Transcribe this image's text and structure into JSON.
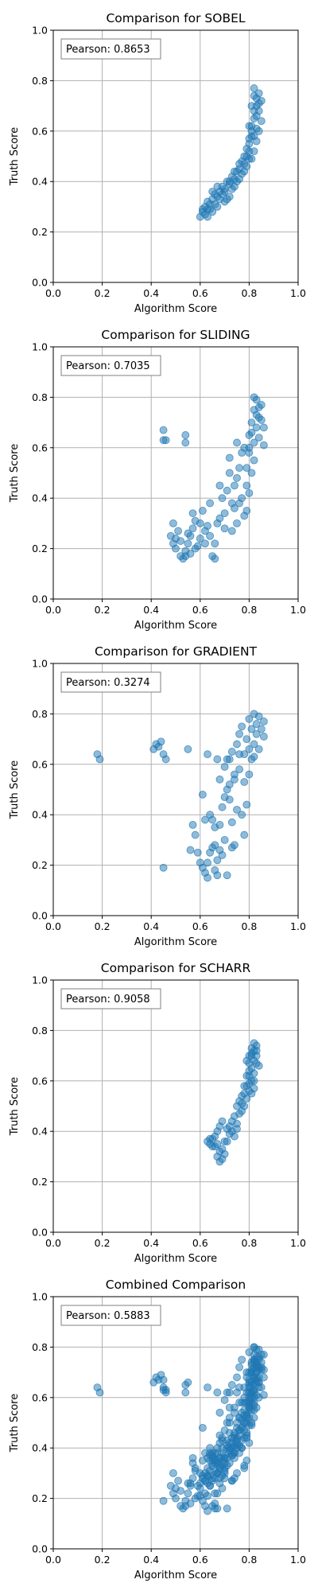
{
  "chart_data": [
    {
      "type": "scatter",
      "title": "Comparison for SOBEL",
      "xlabel": "Algorithm Score",
      "ylabel": "Truth Score",
      "xlim": [
        0,
        1
      ],
      "ylim": [
        0,
        1
      ],
      "xticks": [
        "0.0",
        "0.2",
        "0.4",
        "0.6",
        "0.8",
        "1.0"
      ],
      "yticks": [
        "0.0",
        "0.2",
        "0.4",
        "0.6",
        "0.8",
        "1.0"
      ],
      "grid": true,
      "annotation": "Pearson: 0.8653",
      "color": "#1f77b4",
      "points": [
        [
          0.6,
          0.26
        ],
        [
          0.61,
          0.28
        ],
        [
          0.62,
          0.3
        ],
        [
          0.63,
          0.29
        ],
        [
          0.64,
          0.31
        ],
        [
          0.65,
          0.33
        ],
        [
          0.66,
          0.35
        ],
        [
          0.67,
          0.34
        ],
        [
          0.68,
          0.36
        ],
        [
          0.69,
          0.38
        ],
        [
          0.7,
          0.36
        ],
        [
          0.71,
          0.4
        ],
        [
          0.72,
          0.39
        ],
        [
          0.73,
          0.42
        ],
        [
          0.74,
          0.41
        ],
        [
          0.75,
          0.44
        ],
        [
          0.76,
          0.45
        ],
        [
          0.77,
          0.48
        ],
        [
          0.78,
          0.47
        ],
        [
          0.79,
          0.5
        ],
        [
          0.8,
          0.52
        ],
        [
          0.8,
          0.55
        ],
        [
          0.81,
          0.58
        ],
        [
          0.81,
          0.62
        ],
        [
          0.82,
          0.65
        ],
        [
          0.82,
          0.68
        ],
        [
          0.83,
          0.7
        ],
        [
          0.83,
          0.73
        ],
        [
          0.84,
          0.75
        ],
        [
          0.82,
          0.77
        ],
        [
          0.84,
          0.71
        ],
        [
          0.83,
          0.66
        ],
        [
          0.81,
          0.6
        ],
        [
          0.8,
          0.57
        ],
        [
          0.79,
          0.53
        ],
        [
          0.78,
          0.5
        ],
        [
          0.76,
          0.47
        ],
        [
          0.74,
          0.44
        ],
        [
          0.72,
          0.4
        ],
        [
          0.7,
          0.37
        ],
        [
          0.68,
          0.33
        ],
        [
          0.66,
          0.31
        ],
        [
          0.64,
          0.29
        ],
        [
          0.62,
          0.27
        ],
        [
          0.61,
          0.29
        ],
        [
          0.63,
          0.32
        ],
        [
          0.65,
          0.36
        ],
        [
          0.67,
          0.38
        ],
        [
          0.69,
          0.35
        ],
        [
          0.71,
          0.33
        ],
        [
          0.73,
          0.37
        ],
        [
          0.75,
          0.4
        ],
        [
          0.77,
          0.43
        ],
        [
          0.79,
          0.46
        ],
        [
          0.81,
          0.49
        ],
        [
          0.82,
          0.52
        ],
        [
          0.83,
          0.56
        ],
        [
          0.84,
          0.6
        ],
        [
          0.85,
          0.64
        ],
        [
          0.84,
          0.68
        ],
        [
          0.85,
          0.72
        ],
        [
          0.82,
          0.74
        ],
        [
          0.81,
          0.7
        ],
        [
          0.8,
          0.62
        ],
        [
          0.82,
          0.58
        ],
        [
          0.83,
          0.61
        ],
        [
          0.8,
          0.49
        ],
        [
          0.78,
          0.44
        ],
        [
          0.76,
          0.41
        ],
        [
          0.74,
          0.38
        ],
        [
          0.72,
          0.34
        ],
        [
          0.7,
          0.32
        ],
        [
          0.67,
          0.3
        ],
        [
          0.65,
          0.28
        ],
        [
          0.63,
          0.26
        ]
      ]
    },
    {
      "type": "scatter",
      "title": "Comparison for SLIDING",
      "xlabel": "Algorithm Score",
      "ylabel": "Truth Score",
      "xlim": [
        0,
        1
      ],
      "ylim": [
        0,
        1
      ],
      "xticks": [
        "0.0",
        "0.2",
        "0.4",
        "0.6",
        "0.8",
        "1.0"
      ],
      "yticks": [
        "0.0",
        "0.2",
        "0.4",
        "0.6",
        "0.8",
        "1.0"
      ],
      "grid": true,
      "annotation": "Pearson: 0.7035",
      "color": "#1f77b4",
      "points": [
        [
          0.45,
          0.67
        ],
        [
          0.45,
          0.63
        ],
        [
          0.46,
          0.63
        ],
        [
          0.54,
          0.65
        ],
        [
          0.54,
          0.62
        ],
        [
          0.48,
          0.25
        ],
        [
          0.49,
          0.22
        ],
        [
          0.5,
          0.2
        ],
        [
          0.51,
          0.27
        ],
        [
          0.52,
          0.17
        ],
        [
          0.53,
          0.16
        ],
        [
          0.54,
          0.19
        ],
        [
          0.55,
          0.22
        ],
        [
          0.56,
          0.25
        ],
        [
          0.57,
          0.28
        ],
        [
          0.58,
          0.31
        ],
        [
          0.59,
          0.21
        ],
        [
          0.6,
          0.3
        ],
        [
          0.61,
          0.35
        ],
        [
          0.62,
          0.27
        ],
        [
          0.63,
          0.29
        ],
        [
          0.64,
          0.38
        ],
        [
          0.65,
          0.17
        ],
        [
          0.66,
          0.16
        ],
        [
          0.67,
          0.3
        ],
        [
          0.68,
          0.45
        ],
        [
          0.69,
          0.4
        ],
        [
          0.7,
          0.28
        ],
        [
          0.71,
          0.43
        ],
        [
          0.72,
          0.56
        ],
        [
          0.73,
          0.38
        ],
        [
          0.74,
          0.36
        ],
        [
          0.75,
          0.48
        ],
        [
          0.76,
          0.52
        ],
        [
          0.77,
          0.4
        ],
        [
          0.78,
          0.6
        ],
        [
          0.79,
          0.45
        ],
        [
          0.8,
          0.58
        ],
        [
          0.8,
          0.65
        ],
        [
          0.81,
          0.5
        ],
        [
          0.81,
          0.7
        ],
        [
          0.82,
          0.62
        ],
        [
          0.82,
          0.75
        ],
        [
          0.83,
          0.68
        ],
        [
          0.83,
          0.79
        ],
        [
          0.84,
          0.72
        ],
        [
          0.84,
          0.64
        ],
        [
          0.85,
          0.77
        ],
        [
          0.85,
          0.71
        ],
        [
          0.86,
          0.68
        ],
        [
          0.86,
          0.61
        ],
        [
          0.82,
          0.55
        ],
        [
          0.8,
          0.42
        ],
        [
          0.79,
          0.35
        ],
        [
          0.78,
          0.33
        ],
        [
          0.76,
          0.38
        ],
        [
          0.75,
          0.3
        ],
        [
          0.73,
          0.27
        ],
        [
          0.7,
          0.34
        ],
        [
          0.68,
          0.32
        ],
        [
          0.66,
          0.22
        ],
        [
          0.64,
          0.25
        ],
        [
          0.62,
          0.22
        ],
        [
          0.6,
          0.24
        ],
        [
          0.58,
          0.2
        ],
        [
          0.56,
          0.18
        ],
        [
          0.54,
          0.17
        ],
        [
          0.52,
          0.23
        ],
        [
          0.5,
          0.24
        ],
        [
          0.49,
          0.3
        ],
        [
          0.55,
          0.26
        ],
        [
          0.57,
          0.34
        ],
        [
          0.83,
          0.73
        ],
        [
          0.84,
          0.76
        ],
        [
          0.82,
          0.8
        ],
        [
          0.81,
          0.66
        ],
        [
          0.8,
          0.6
        ],
        [
          0.79,
          0.52
        ],
        [
          0.77,
          0.58
        ],
        [
          0.75,
          0.62
        ],
        [
          0.74,
          0.45
        ],
        [
          0.72,
          0.5
        ]
      ]
    },
    {
      "type": "scatter",
      "title": "Comparison for GRADIENT",
      "xlabel": "Algorithm Score",
      "ylabel": "Truth Score",
      "xlim": [
        0,
        1
      ],
      "ylim": [
        0,
        1
      ],
      "xticks": [
        "0.0",
        "0.2",
        "0.4",
        "0.6",
        "0.8",
        "1.0"
      ],
      "yticks": [
        "0.0",
        "0.2",
        "0.4",
        "0.6",
        "0.8",
        "1.0"
      ],
      "grid": true,
      "annotation": "Pearson: 0.3274",
      "color": "#1f77b4",
      "points": [
        [
          0.18,
          0.64
        ],
        [
          0.19,
          0.62
        ],
        [
          0.41,
          0.66
        ],
        [
          0.42,
          0.68
        ],
        [
          0.43,
          0.67
        ],
        [
          0.44,
          0.69
        ],
        [
          0.45,
          0.64
        ],
        [
          0.46,
          0.62
        ],
        [
          0.45,
          0.19
        ],
        [
          0.55,
          0.66
        ],
        [
          0.56,
          0.26
        ],
        [
          0.57,
          0.36
        ],
        [
          0.58,
          0.32
        ],
        [
          0.59,
          0.25
        ],
        [
          0.6,
          0.21
        ],
        [
          0.61,
          0.48
        ],
        [
          0.62,
          0.38
        ],
        [
          0.62,
          0.17
        ],
        [
          0.63,
          0.64
        ],
        [
          0.63,
          0.15
        ],
        [
          0.64,
          0.4
        ],
        [
          0.65,
          0.27
        ],
        [
          0.66,
          0.18
        ],
        [
          0.66,
          0.35
        ],
        [
          0.67,
          0.22
        ],
        [
          0.67,
          0.62
        ],
        [
          0.68,
          0.54
        ],
        [
          0.68,
          0.26
        ],
        [
          0.69,
          0.43
        ],
        [
          0.7,
          0.3
        ],
        [
          0.7,
          0.59
        ],
        [
          0.71,
          0.5
        ],
        [
          0.71,
          0.16
        ],
        [
          0.72,
          0.62
        ],
        [
          0.72,
          0.46
        ],
        [
          0.73,
          0.65
        ],
        [
          0.73,
          0.37
        ],
        [
          0.74,
          0.56
        ],
        [
          0.74,
          0.28
        ],
        [
          0.75,
          0.68
        ],
        [
          0.75,
          0.42
        ],
        [
          0.76,
          0.72
        ],
        [
          0.76,
          0.58
        ],
        [
          0.77,
          0.4
        ],
        [
          0.77,
          0.75
        ],
        [
          0.78,
          0.64
        ],
        [
          0.78,
          0.53
        ],
        [
          0.79,
          0.7
        ],
        [
          0.79,
          0.44
        ],
        [
          0.8,
          0.78
        ],
        [
          0.8,
          0.66
        ],
        [
          0.81,
          0.62
        ],
        [
          0.81,
          0.74
        ],
        [
          0.82,
          0.8
        ],
        [
          0.82,
          0.68
        ],
        [
          0.83,
          0.76
        ],
        [
          0.83,
          0.72
        ],
        [
          0.84,
          0.79
        ],
        [
          0.84,
          0.66
        ],
        [
          0.85,
          0.74
        ],
        [
          0.86,
          0.77
        ],
        [
          0.86,
          0.71
        ],
        [
          0.74,
          0.54
        ],
        [
          0.72,
          0.52
        ],
        [
          0.7,
          0.47
        ],
        [
          0.68,
          0.36
        ],
        [
          0.66,
          0.28
        ],
        [
          0.64,
          0.25
        ],
        [
          0.63,
          0.21
        ],
        [
          0.61,
          0.19
        ],
        [
          0.78,
          0.32
        ],
        [
          0.8,
          0.56
        ],
        [
          0.82,
          0.63
        ],
        [
          0.76,
          0.64
        ],
        [
          0.71,
          0.62
        ],
        [
          0.65,
          0.38
        ],
        [
          0.69,
          0.24
        ],
        [
          0.73,
          0.27
        ],
        [
          0.67,
          0.16
        ]
      ]
    },
    {
      "type": "scatter",
      "title": "Comparison for SCHARR",
      "xlabel": "Algorithm Score",
      "ylabel": "Truth Score",
      "xlim": [
        0,
        1
      ],
      "ylim": [
        0,
        1
      ],
      "xticks": [
        "0.0",
        "0.2",
        "0.4",
        "0.6",
        "0.8",
        "1.0"
      ],
      "yticks": [
        "0.0",
        "0.2",
        "0.4",
        "0.6",
        "0.8",
        "1.0"
      ],
      "grid": true,
      "annotation": "Pearson: 0.9058",
      "color": "#1f77b4",
      "points": [
        [
          0.63,
          0.36
        ],
        [
          0.64,
          0.35
        ],
        [
          0.65,
          0.37
        ],
        [
          0.66,
          0.34
        ],
        [
          0.67,
          0.4
        ],
        [
          0.67,
          0.3
        ],
        [
          0.68,
          0.28
        ],
        [
          0.69,
          0.29
        ],
        [
          0.68,
          0.42
        ],
        [
          0.69,
          0.44
        ],
        [
          0.7,
          0.31
        ],
        [
          0.71,
          0.36
        ],
        [
          0.72,
          0.42
        ],
        [
          0.73,
          0.4
        ],
        [
          0.74,
          0.38
        ],
        [
          0.74,
          0.46
        ],
        [
          0.75,
          0.5
        ],
        [
          0.75,
          0.43
        ],
        [
          0.76,
          0.52
        ],
        [
          0.77,
          0.48
        ],
        [
          0.78,
          0.55
        ],
        [
          0.79,
          0.53
        ],
        [
          0.79,
          0.58
        ],
        [
          0.8,
          0.56
        ],
        [
          0.8,
          0.62
        ],
        [
          0.81,
          0.6
        ],
        [
          0.81,
          0.65
        ],
        [
          0.81,
          0.7
        ],
        [
          0.82,
          0.68
        ],
        [
          0.82,
          0.72
        ],
        [
          0.83,
          0.74
        ],
        [
          0.83,
          0.67
        ],
        [
          0.82,
          0.63
        ],
        [
          0.8,
          0.59
        ],
        [
          0.8,
          0.67
        ],
        [
          0.81,
          0.71
        ],
        [
          0.82,
          0.57
        ],
        [
          0.78,
          0.5
        ],
        [
          0.77,
          0.51
        ],
        [
          0.76,
          0.47
        ],
        [
          0.73,
          0.44
        ],
        [
          0.72,
          0.39
        ],
        [
          0.7,
          0.36
        ],
        [
          0.69,
          0.33
        ],
        [
          0.68,
          0.32
        ],
        [
          0.66,
          0.38
        ],
        [
          0.65,
          0.34
        ],
        [
          0.64,
          0.37
        ],
        [
          0.67,
          0.35
        ],
        [
          0.71,
          0.41
        ],
        [
          0.75,
          0.41
        ],
        [
          0.79,
          0.62
        ],
        [
          0.83,
          0.7
        ],
        [
          0.84,
          0.66
        ],
        [
          0.82,
          0.6
        ],
        [
          0.81,
          0.55
        ],
        [
          0.8,
          0.64
        ],
        [
          0.79,
          0.68
        ],
        [
          0.83,
          0.72
        ],
        [
          0.82,
          0.75
        ],
        [
          0.81,
          0.73
        ],
        [
          0.8,
          0.7
        ],
        [
          0.78,
          0.58
        ],
        [
          0.77,
          0.54
        ]
      ]
    },
    {
      "type": "scatter",
      "title": "Combined Comparison",
      "xlabel": "Algorithm Score",
      "ylabel": "Truth Score",
      "xlim": [
        0,
        1
      ],
      "ylim": [
        0,
        1
      ],
      "xticks": [
        "0.0",
        "0.2",
        "0.4",
        "0.6",
        "0.8",
        "1.0"
      ],
      "yticks": [
        "0.0",
        "0.2",
        "0.4",
        "0.6",
        "0.8",
        "1.0"
      ],
      "grid": true,
      "annotation": "Pearson: 0.5883",
      "color": "#1f77b4",
      "combine_all": true,
      "points": []
    }
  ]
}
